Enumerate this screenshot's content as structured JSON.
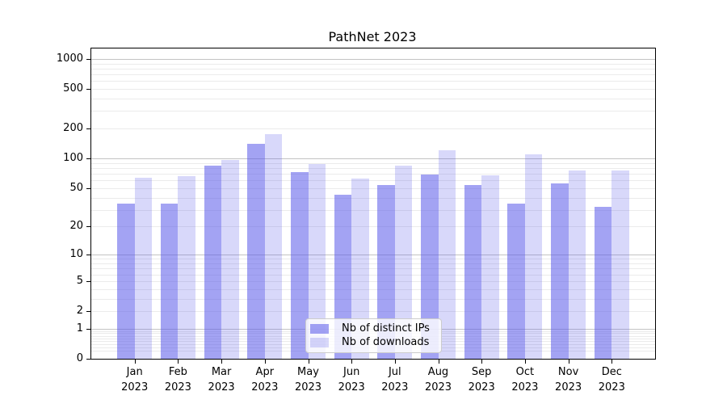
{
  "title": "PathNet 2023",
  "legend": {
    "items": [
      {
        "label": "Nb of distinct IPs",
        "color": "rgba(88,88,233,0.55)"
      },
      {
        "label": "Nb of downloads",
        "color": "rgba(88,88,233,0.23)"
      }
    ]
  },
  "colors": {
    "bar_distinct_ips": "#a3a3f3",
    "bar_downloads": "#d9d9fa",
    "grid_major": "#c3c3c3",
    "grid_minor": "#ebebeb",
    "axes": "#000000"
  },
  "chart_data": {
    "type": "bar",
    "title": "PathNet 2023",
    "categories": [
      "Jan 2023",
      "Feb 2023",
      "Mar 2023",
      "Apr 2023",
      "May 2023",
      "Jun 2023",
      "Jul 2023",
      "Aug 2023",
      "Sep 2023",
      "Oct 2023",
      "Nov 2023",
      "Dec 2023"
    ],
    "series": [
      {
        "name": "Nb of distinct IPs",
        "color": "rgba(88,88,233,0.55)",
        "values": [
          35,
          35,
          84,
          141,
          73,
          43,
          54,
          69,
          54,
          35,
          56,
          32
        ]
      },
      {
        "name": "Nb of downloads",
        "color": "rgba(88,88,233,0.23)",
        "values": [
          64,
          66,
          96,
          177,
          88,
          62,
          84,
          122,
          67,
          111,
          75,
          76
        ]
      }
    ],
    "xlabel": "",
    "ylabel": "",
    "yscale": "log1p",
    "yticks": [
      1000,
      500,
      200,
      100,
      50,
      20,
      10,
      5,
      2,
      1,
      0
    ],
    "ylim": [
      0,
      1270
    ],
    "grid": true,
    "legend_position": "lower center"
  }
}
